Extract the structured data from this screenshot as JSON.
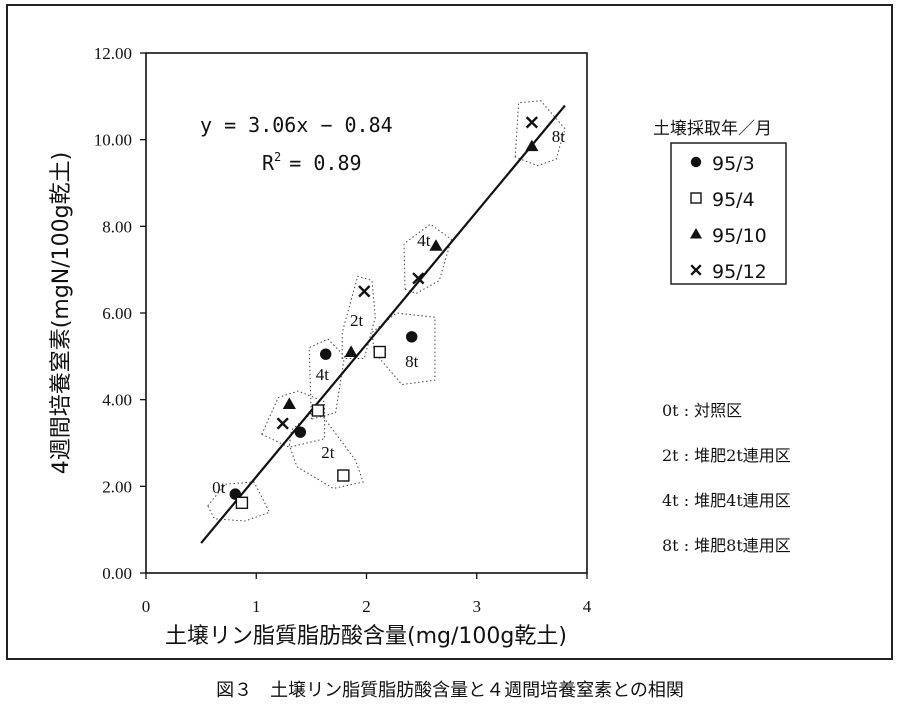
{
  "caption": "図３　土壌リン脂質脂肪酸含量と４週間培養窒素との相関",
  "chart_data": {
    "type": "scatter",
    "xlabel": "土壌リン脂質脂肪酸含量(mg/100g乾土)",
    "ylabel": "4週間培養窒素(mgN/100g乾土)",
    "xlim": [
      0,
      4
    ],
    "ylim": [
      0,
      12
    ],
    "x_ticks": [
      "0",
      "1",
      "2",
      "3",
      "4"
    ],
    "y_ticks": [
      "0.00",
      "2.00",
      "4.00",
      "6.00",
      "8.00",
      "10.00",
      "12.00"
    ],
    "equation": "y = 3.06x − 0.84",
    "r2_label": "R",
    "r2_sup": "2",
    "r2_value": "= 0.89",
    "regression": {
      "slope": 3.06,
      "intercept": -0.84,
      "x_range": [
        0.5,
        3.8
      ]
    },
    "legend_title": "土壌採取年／月",
    "series": [
      {
        "name": "95/3",
        "marker": "circle",
        "points": [
          [
            0.81,
            1.82
          ],
          [
            1.4,
            3.25
          ],
          [
            1.63,
            5.05
          ],
          [
            2.41,
            5.45
          ]
        ]
      },
      {
        "name": "95/4",
        "marker": "square",
        "points": [
          [
            0.87,
            1.62
          ],
          [
            1.56,
            3.75
          ],
          [
            1.79,
            2.25
          ],
          [
            2.12,
            5.1
          ]
        ]
      },
      {
        "name": "95/10",
        "marker": "triangle",
        "points": [
          [
            1.3,
            3.9
          ],
          [
            1.86,
            5.1
          ],
          [
            2.63,
            7.55
          ],
          [
            3.5,
            9.85
          ]
        ]
      },
      {
        "name": "95/12",
        "marker": "cross",
        "points": [
          [
            1.24,
            3.45
          ],
          [
            1.98,
            6.5
          ],
          [
            2.47,
            6.8
          ],
          [
            3.5,
            10.4
          ]
        ]
      }
    ],
    "group_labels": [
      {
        "text": "0t",
        "x": 0.66,
        "y": 1.85
      },
      {
        "text": "4t",
        "x": 1.6,
        "y": 4.45
      },
      {
        "text": "2t",
        "x": 1.91,
        "y": 5.7
      },
      {
        "text": "8t",
        "x": 2.41,
        "y": 4.75
      },
      {
        "text": "2t",
        "x": 1.65,
        "y": 2.65
      },
      {
        "text": "4t",
        "x": 2.52,
        "y": 7.55
      },
      {
        "text": "8t",
        "x": 3.74,
        "y": 9.95
      }
    ],
    "key": [
      "0t : 対照区",
      "2t : 堆肥2t連用区",
      "4t : 堆肥4t連用区",
      "8t : 堆肥8t連用区"
    ]
  }
}
